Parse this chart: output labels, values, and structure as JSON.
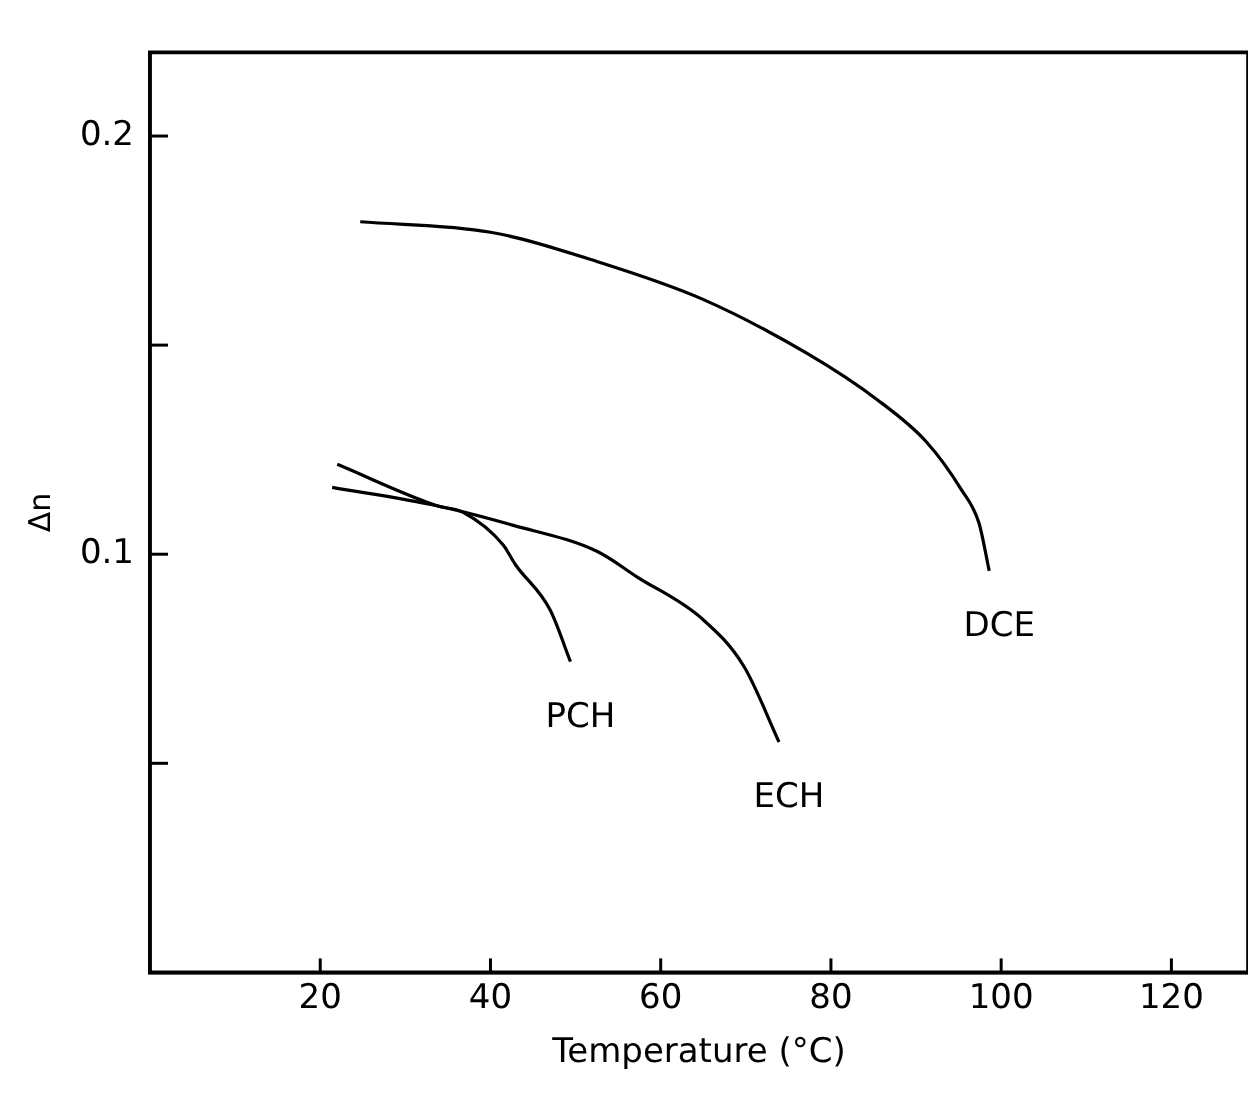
{
  "chart_data": {
    "type": "line",
    "xlabel": "Temperature (°C)",
    "ylabel": "Δn",
    "xlim": [
      0,
      129
    ],
    "xticks": [
      20,
      40,
      60,
      80,
      100,
      120
    ],
    "ylim": [
      0,
      0.22
    ],
    "yticks": [
      {
        "value": 0.05,
        "label": null
      },
      0.1,
      {
        "value": 0.15,
        "label": null
      },
      0.2
    ],
    "grid": false,
    "legend": false,
    "marker": "none",
    "line_style": "solid",
    "series": [
      {
        "name": "DCE",
        "color": "#000000",
        "x": [
          24.7,
          40,
          52.5,
          64.9,
          77.2,
          85.4,
          91.2,
          95.3,
          97.4,
          98.6
        ],
        "values": [
          0.1795,
          0.177,
          0.17,
          0.161,
          0.148,
          0.137,
          0.1269,
          0.1155,
          0.1074,
          0.096
        ]
      },
      {
        "name": "ECH",
        "color": "#000000",
        "x": [
          21.4,
          33.7,
          42.7,
          52.5,
          57.2,
          64.9,
          69.8,
          73.9
        ],
        "values": [
          0.116,
          0.1116,
          0.1069,
          0.1007,
          0.0946,
          0.0845,
          0.0731,
          0.0551
        ]
      },
      {
        "name": "PCH",
        "color": "#000000",
        "x": [
          22.0,
          33.7,
          36.8,
          41.5,
          42.9,
          47,
          49.4
        ],
        "values": [
          0.1215,
          0.1116,
          0.11,
          0.1022,
          0.0976,
          0.0867,
          0.0743
        ]
      }
    ]
  }
}
